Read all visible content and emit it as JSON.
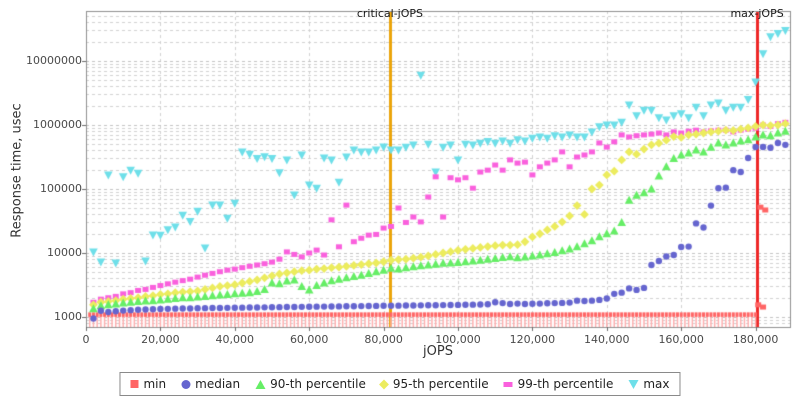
{
  "figure": {
    "x_axis_title": "jOPS",
    "y_axis_title": "Response time, usec",
    "critical_label": "critical-jOPS",
    "max_label": "max-jOPS"
  },
  "chart_data": {
    "type": "scatter",
    "x_axis": {
      "label": "jOPS",
      "scale": "linear",
      "min": 0,
      "max": 189000,
      "ticks": [
        0,
        20000,
        40000,
        60000,
        80000,
        100000,
        120000,
        140000,
        160000,
        180000
      ],
      "tick_labels": [
        "0",
        "20,000",
        "40,000",
        "60,000",
        "80,000",
        "100,000",
        "120,000",
        "140,000",
        "160,000",
        "180,000"
      ]
    },
    "y_axis": {
      "label": "Response time, usec",
      "scale": "log",
      "min": 700,
      "max": 60000000,
      "ticks": [
        1000,
        10000,
        100000,
        1000000,
        10000000
      ],
      "tick_labels": [
        "1000",
        "10000",
        "100000",
        "1000000",
        "10000000"
      ]
    },
    "grid": {
      "on": true,
      "color_minor": "#d2d2d2",
      "color_major": "#c3c3c3"
    },
    "reference_lines": [
      {
        "name": "critical-jOPS",
        "jops": 81700,
        "color": "#eba50b"
      },
      {
        "name": "max-jOPS",
        "jops": 180400,
        "color": "#ee2727"
      }
    ],
    "series_x": {
      "start": 2000,
      "step": 2000,
      "count": 94
    },
    "series": [
      {
        "name": "min",
        "marker": "tick-square",
        "color": "#ff6565",
        "stem_color": "#ffb0b0",
        "constant": {
          "value": 1100,
          "x_start": 1000,
          "x_step": 1000,
          "x_end": 180000
        },
        "extra_points": [
          [
            180700,
            1550
          ],
          [
            182000,
            1430
          ],
          [
            181300,
            52000
          ],
          [
            182600,
            47000
          ]
        ]
      },
      {
        "name": "median",
        "marker": "circle",
        "color": "#6565cf",
        "values": [
          950,
          1250,
          1200,
          1230,
          1260,
          1280,
          1300,
          1310,
          1320,
          1330,
          1340,
          1350,
          1355,
          1360,
          1370,
          1375,
          1380,
          1385,
          1390,
          1395,
          1400,
          1405,
          1410,
          1415,
          1420,
          1425,
          1430,
          1435,
          1440,
          1445,
          1450,
          1455,
          1460,
          1465,
          1470,
          1475,
          1480,
          1485,
          1490,
          1495,
          1500,
          1505,
          1510,
          1515,
          1520,
          1525,
          1530,
          1535,
          1540,
          1545,
          1550,
          1560,
          1570,
          1580,
          1700,
          1650,
          1600,
          1620,
          1600,
          1610,
          1620,
          1640,
          1650,
          1660,
          1680,
          1800,
          1780,
          1800,
          1850,
          1950,
          2300,
          2400,
          2800,
          2650,
          2850,
          6500,
          7500,
          8800,
          9300,
          12400,
          12600,
          29000,
          25000,
          55000,
          103000,
          105000,
          197000,
          184000,
          305000,
          452000,
          452000,
          440000,
          524000,
          490000
        ]
      },
      {
        "name": "90-th percentile",
        "marker": "triangle-up",
        "color": "#66ee66",
        "values": [
          1350,
          1500,
          1550,
          1600,
          1650,
          1700,
          1750,
          1780,
          1800,
          1850,
          1900,
          1950,
          2000,
          2000,
          2050,
          2100,
          2150,
          2200,
          2250,
          2300,
          2350,
          2400,
          2500,
          2700,
          3400,
          3300,
          3650,
          3800,
          3000,
          2650,
          3100,
          3400,
          3700,
          3900,
          4100,
          4300,
          4500,
          4800,
          5100,
          5400,
          5800,
          5600,
          5900,
          6100,
          6300,
          6500,
          6700,
          6900,
          7000,
          7100,
          7300,
          7500,
          7700,
          8000,
          8200,
          8500,
          8700,
          8400,
          8650,
          9000,
          9300,
          9700,
          10200,
          10800,
          11500,
          12500,
          14000,
          15500,
          18000,
          20000,
          22000,
          30000,
          67000,
          80000,
          87000,
          100000,
          160000,
          222000,
          300000,
          340000,
          365000,
          405000,
          380000,
          450000,
          524000,
          485000,
          524000,
          560000,
          590000,
          650000,
          700000,
          680000,
          750000,
          800000
        ]
      },
      {
        "name": "95-th percentile",
        "marker": "diamond",
        "color": "#ecec5e",
        "values": [
          1550,
          1700,
          1750,
          1800,
          1900,
          1950,
          2000,
          2100,
          2150,
          2250,
          2300,
          2400,
          2450,
          2500,
          2550,
          2700,
          2850,
          3000,
          3100,
          3200,
          3400,
          3600,
          3800,
          4100,
          4400,
          4700,
          4900,
          5100,
          5300,
          5400,
          5600,
          5700,
          5900,
          6000,
          6200,
          6400,
          6600,
          6800,
          7000,
          7300,
          7700,
          7900,
          8000,
          8300,
          8600,
          9000,
          9500,
          10000,
          10500,
          11000,
          11400,
          11800,
          12200,
          12600,
          13000,
          13300,
          13300,
          13500,
          15000,
          17800,
          20000,
          22900,
          26000,
          30600,
          38000,
          55000,
          40000,
          100000,
          115000,
          166000,
          190000,
          285000,
          380000,
          350000,
          420000,
          490000,
          520000,
          580000,
          660000,
          640000,
          700000,
          720000,
          750000,
          780000,
          800000,
          830000,
          820000,
          860000,
          900000,
          950000,
          1000000,
          980000,
          1000000,
          1050000
        ]
      },
      {
        "name": "99-th percentile",
        "marker": "square",
        "color": "#fa60dd",
        "values": [
          1700,
          1900,
          2000,
          2100,
          2300,
          2400,
          2600,
          2700,
          2900,
          3100,
          3300,
          3500,
          3700,
          3900,
          4200,
          4500,
          4800,
          5100,
          5400,
          5600,
          5900,
          6200,
          6500,
          6800,
          7200,
          8000,
          10400,
          9500,
          8700,
          10000,
          11100,
          9300,
          33000,
          12500,
          56000,
          15000,
          17000,
          19000,
          19500,
          24500,
          26000,
          50500,
          30000,
          36500,
          30600,
          75000,
          155000,
          36500,
          150000,
          139000,
          150000,
          103000,
          184000,
          197000,
          237000,
          197000,
          285000,
          254000,
          263000,
          166000,
          222000,
          254000,
          285000,
          380000,
          222000,
          316000,
          340000,
          380000,
          524000,
          452000,
          546000,
          700000,
          650000,
          680000,
          700000,
          720000,
          750000,
          700000,
          780000,
          750000,
          800000,
          830000,
          780000,
          810000,
          830000,
          830000,
          780000,
          830000,
          860000,
          890000,
          1000000,
          950000,
          1050000,
          1100000
        ]
      },
      {
        "name": "max",
        "marker": "triangle-down",
        "color": "#6edfe9",
        "values": [
          10400,
          7240,
          166000,
          7000,
          156000,
          197000,
          177000,
          7500,
          19100,
          19000,
          23000,
          25500,
          39000,
          31000,
          45000,
          12000,
          56000,
          56000,
          35000,
          60000,
          380000,
          350000,
          300000,
          320000,
          300000,
          180000,
          285000,
          80500,
          340000,
          115000,
          103000,
          305000,
          285000,
          128000,
          316000,
          405000,
          380000,
          380000,
          405000,
          452000,
          405000,
          405000,
          450000,
          485000,
          6000000,
          500000,
          184000,
          450000,
          485000,
          285000,
          500000,
          485000,
          520000,
          550000,
          520000,
          560000,
          520000,
          590000,
          560000,
          620000,
          650000,
          620000,
          680000,
          650000,
          700000,
          650000,
          650000,
          780000,
          940000,
          1000000,
          1000000,
          1100000,
          2050000,
          1400000,
          1700000,
          1700000,
          1300000,
          1200000,
          1400000,
          1500000,
          1300000,
          1900000,
          1400000,
          2050000,
          2200000,
          1700000,
          1900000,
          1900000,
          2500000,
          4700000,
          13000000,
          24000000,
          27000000,
          30000000
        ]
      }
    ],
    "legend": {
      "position": "bottom-center",
      "order": [
        "min",
        "median",
        "90-th percentile",
        "95-th percentile",
        "99-th percentile",
        "max"
      ]
    }
  }
}
